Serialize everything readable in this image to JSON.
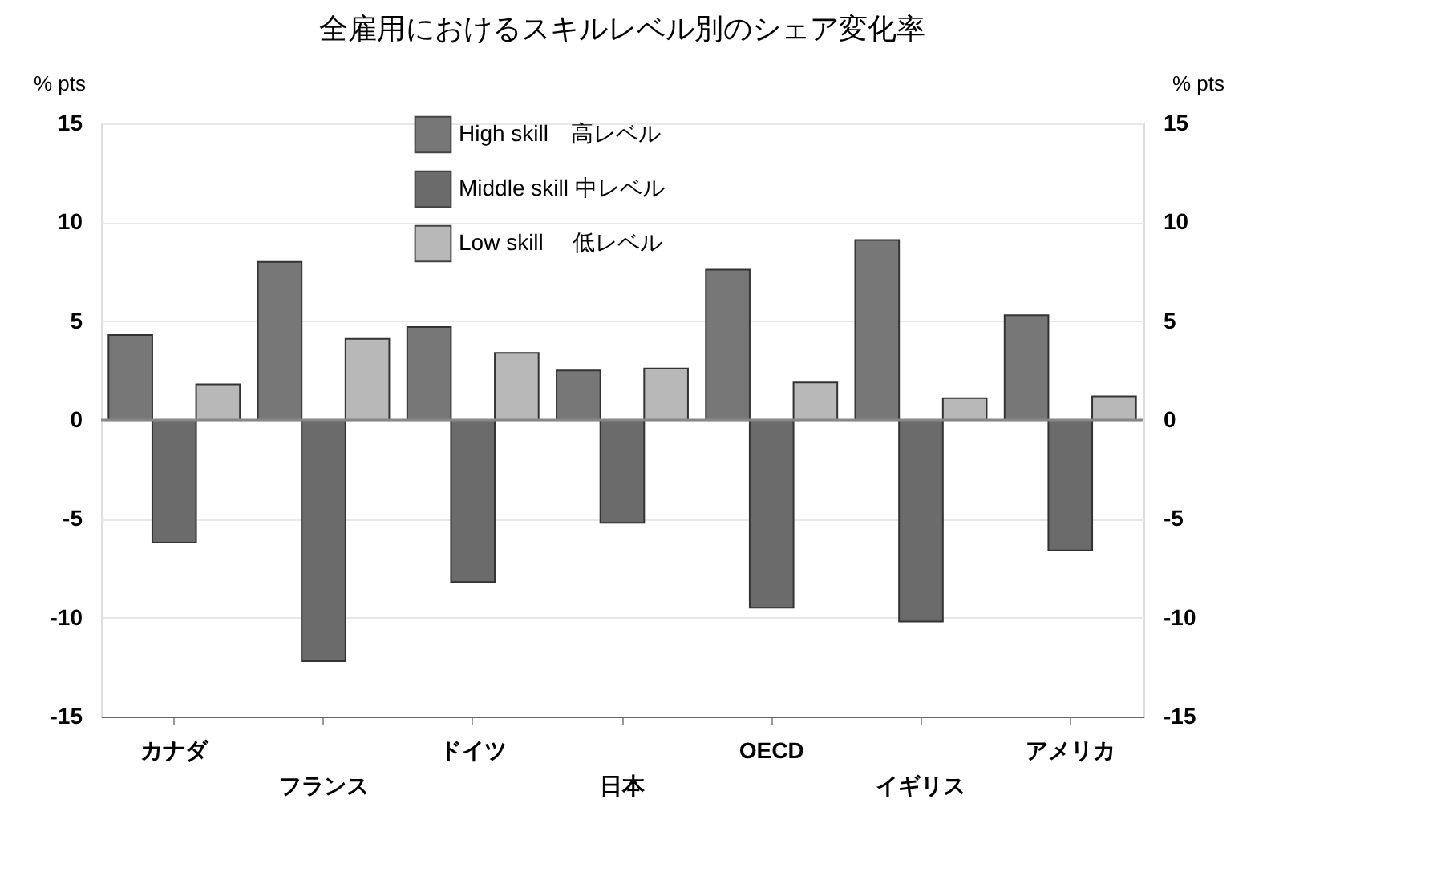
{
  "chart_data": {
    "type": "bar",
    "title": "全雇用におけるスキルレベル別のシェア変化率",
    "categories": [
      "カナダ",
      "フランス",
      "ドイツ",
      "日本",
      "OECD",
      "イギリス",
      "アメリカ"
    ],
    "series": [
      {
        "name": "High skill　高レベル",
        "color": "#777777",
        "values": [
          4.3,
          8.0,
          4.7,
          2.5,
          7.6,
          9.1,
          5.3
        ]
      },
      {
        "name": "Middle skill 中レベル",
        "color": "#6b6b6b",
        "values": [
          -6.2,
          -12.2,
          -8.2,
          -5.2,
          -9.5,
          -10.2,
          -6.6
        ]
      },
      {
        "name": "Low skill　 低レベル",
        "color": "#b8b8b8",
        "values": [
          1.8,
          4.1,
          3.4,
          2.6,
          1.9,
          1.1,
          1.2
        ]
      }
    ],
    "ylabel": "% pts",
    "ylim": [
      -15,
      15
    ],
    "yticks": [
      -15,
      -10,
      -5,
      0,
      5,
      10,
      15
    ],
    "y2label": "% pts",
    "y2lim": [
      -15,
      15
    ],
    "y2ticks": [
      -15,
      -10,
      -5,
      0,
      5,
      10,
      15
    ],
    "ref_lines": [
      {
        "axis": "y",
        "value": 0,
        "color": "#888888"
      }
    ],
    "grid": "y",
    "legend": "top"
  }
}
